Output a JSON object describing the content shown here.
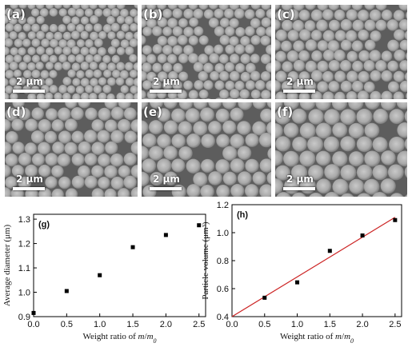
{
  "figure": {
    "sem_panels": [
      {
        "label": "(a)",
        "scale_bar": "2 μm"
      },
      {
        "label": "(b)",
        "scale_bar": "2 μm"
      },
      {
        "label": "(c)",
        "scale_bar": "2 μm"
      },
      {
        "label": "(d)",
        "scale_bar": "2 μm"
      },
      {
        "label": "(e)",
        "scale_bar": "2 μm"
      },
      {
        "label": "(f)",
        "scale_bar": "2 μm"
      }
    ]
  },
  "chart_data": [
    {
      "type": "scatter",
      "panel_label": "(g)",
      "xlabel_parts": [
        "Weight ratio of ",
        "m",
        "/",
        "m",
        "0"
      ],
      "ylabel": "Average diameter (μm)",
      "xlim": [
        0.0,
        2.6
      ],
      "ylim": [
        0.9,
        1.32
      ],
      "x_ticks": [
        "0.0",
        "0.5",
        "1.0",
        "1.5",
        "2.0",
        "2.5"
      ],
      "y_ticks": [
        "0.9",
        "1.0",
        "1.1",
        "1.2",
        "1.3"
      ],
      "x": [
        0.0,
        0.5,
        1.0,
        1.5,
        2.0,
        2.5
      ],
      "y": [
        0.915,
        1.005,
        1.07,
        1.185,
        1.235,
        1.275
      ],
      "marker_color": "#000000"
    },
    {
      "type": "scatter",
      "panel_label": "(h)",
      "xlabel_parts": [
        "Weight ratio of ",
        "m",
        "/",
        "m",
        "0"
      ],
      "ylabel": "Particle volume (μm³)",
      "xlim": [
        0.0,
        2.6
      ],
      "ylim": [
        0.4,
        1.2
      ],
      "x_ticks": [
        "0.0",
        "0.5",
        "1.0",
        "1.5",
        "2.0",
        "2.5"
      ],
      "y_ticks": [
        "0.4",
        "0.6",
        "0.8",
        "1.0",
        "1.2"
      ],
      "x": [
        0.5,
        1.0,
        1.5,
        2.0,
        2.5
      ],
      "y": [
        0.535,
        0.645,
        0.87,
        0.98,
        1.09
      ],
      "fit_line": {
        "x": [
          0.0,
          2.5
        ],
        "y": [
          0.4,
          1.11
        ]
      },
      "marker_color": "#000000",
      "fit_color": "#cc2222"
    }
  ]
}
